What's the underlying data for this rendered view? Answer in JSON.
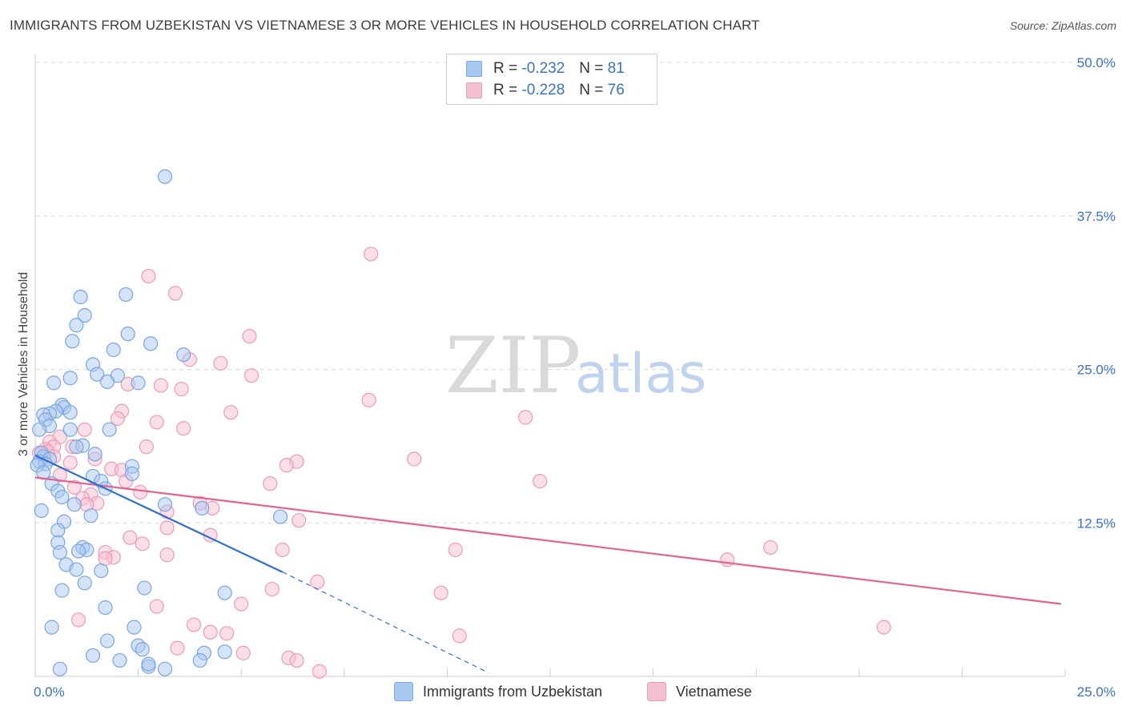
{
  "title": "IMMIGRANTS FROM UZBEKISTAN VS VIETNAMESE 3 OR MORE VEHICLES IN HOUSEHOLD CORRELATION CHART",
  "source": "Source: ZipAtlas.com",
  "watermark": {
    "zip": "ZIP",
    "atlas": "atlas"
  },
  "legend": {
    "rows": [
      {
        "r_label": "R = ",
        "r_value": "-0.232",
        "n_label": "N = ",
        "n_value": "81"
      },
      {
        "r_label": "R = ",
        "r_value": "-0.228",
        "n_label": "N = ",
        "n_value": "76"
      }
    ]
  },
  "bottom_legend": [
    "Immigrants from Uzbekistan",
    "Vietnamese"
  ],
  "colors": {
    "blue_fill": "#a9c8ef",
    "blue_stroke": "#7aa6e0",
    "blue_line": "#2e6fd1",
    "pink_fill": "#f5bfd2",
    "pink_stroke": "#ee9ab8",
    "pink_line": "#e4628f",
    "grid": "#dcdcdc",
    "tick": "#3a72c4"
  },
  "chart_data": {
    "type": "scatter",
    "xlabel": "",
    "ylabel": "3 or more Vehicles in Household",
    "xlim": [
      0,
      25
    ],
    "ylim": [
      0,
      50
    ],
    "x_tick_labels": [
      "0.0%",
      "25.0%"
    ],
    "y_ticks": [
      12.5,
      25.0,
      37.5,
      50.0
    ],
    "y_tick_labels": [
      "12.5%",
      "25.0%",
      "37.5%",
      "50.0%"
    ],
    "series": [
      {
        "name": "Immigrants from Uzbekistan",
        "R": -0.232,
        "N": 81,
        "trend": {
          "x0": 0.0,
          "y0": 18.0,
          "x1": 6.0,
          "y1": 8.5,
          "dash_x1": 11.0,
          "dash_y1": 0.3
        },
        "points": [
          [
            3.15,
            40.7
          ],
          [
            1.1,
            30.9
          ],
          [
            2.2,
            31.1
          ],
          [
            1.2,
            29.4
          ],
          [
            1.0,
            28.6
          ],
          [
            2.25,
            27.9
          ],
          [
            2.8,
            27.1
          ],
          [
            0.9,
            27.3
          ],
          [
            1.9,
            26.6
          ],
          [
            3.6,
            26.2
          ],
          [
            1.4,
            25.4
          ],
          [
            1.5,
            24.6
          ],
          [
            2.0,
            24.5
          ],
          [
            0.85,
            24.3
          ],
          [
            1.75,
            24.0
          ],
          [
            2.5,
            23.9
          ],
          [
            0.45,
            23.9
          ],
          [
            0.65,
            22.1
          ],
          [
            0.7,
            21.9
          ],
          [
            0.5,
            21.6
          ],
          [
            0.35,
            21.4
          ],
          [
            0.85,
            21.5
          ],
          [
            0.2,
            21.3
          ],
          [
            0.25,
            20.9
          ],
          [
            0.35,
            20.4
          ],
          [
            0.1,
            20.1
          ],
          [
            1.8,
            20.1
          ],
          [
            0.85,
            20.1
          ],
          [
            1.15,
            18.8
          ],
          [
            1.0,
            18.7
          ],
          [
            0.15,
            18.2
          ],
          [
            1.45,
            18.1
          ],
          [
            0.2,
            17.9
          ],
          [
            0.35,
            17.7
          ],
          [
            0.1,
            17.5
          ],
          [
            0.25,
            17.3
          ],
          [
            0.05,
            17.2
          ],
          [
            2.35,
            17.1
          ],
          [
            0.2,
            16.6
          ],
          [
            1.4,
            16.3
          ],
          [
            2.35,
            16.5
          ],
          [
            1.6,
            15.9
          ],
          [
            0.4,
            15.7
          ],
          [
            1.7,
            15.3
          ],
          [
            0.55,
            15.1
          ],
          [
            0.65,
            14.6
          ],
          [
            0.95,
            14.0
          ],
          [
            3.15,
            14.0
          ],
          [
            0.15,
            13.5
          ],
          [
            4.05,
            13.7
          ],
          [
            1.35,
            13.1
          ],
          [
            5.95,
            13.0
          ],
          [
            0.7,
            12.6
          ],
          [
            0.55,
            11.9
          ],
          [
            0.55,
            10.9
          ],
          [
            1.15,
            10.5
          ],
          [
            1.25,
            10.3
          ],
          [
            1.05,
            10.2
          ],
          [
            0.6,
            10.1
          ],
          [
            0.75,
            9.1
          ],
          [
            1.0,
            8.7
          ],
          [
            1.6,
            8.6
          ],
          [
            1.2,
            7.6
          ],
          [
            0.65,
            7.0
          ],
          [
            2.65,
            7.2
          ],
          [
            4.6,
            6.8
          ],
          [
            1.7,
            5.6
          ],
          [
            2.4,
            4.0
          ],
          [
            0.4,
            4.0
          ],
          [
            1.75,
            2.9
          ],
          [
            2.5,
            2.5
          ],
          [
            1.4,
            1.7
          ],
          [
            2.05,
            1.3
          ],
          [
            2.6,
            2.2
          ],
          [
            4.1,
            1.9
          ],
          [
            4.6,
            2.0
          ],
          [
            4.0,
            1.3
          ],
          [
            2.75,
            0.8
          ],
          [
            3.15,
            0.6
          ],
          [
            2.75,
            1.0
          ],
          [
            0.6,
            0.6
          ]
        ]
      },
      {
        "name": "Vietnamese",
        "R": -0.228,
        "N": 76,
        "trend": {
          "x0": 0.0,
          "y0": 16.2,
          "x1": 24.9,
          "y1": 5.9
        },
        "points": [
          [
            8.15,
            34.4
          ],
          [
            2.75,
            32.6
          ],
          [
            3.4,
            31.2
          ],
          [
            5.2,
            27.7
          ],
          [
            3.75,
            25.8
          ],
          [
            4.5,
            25.5
          ],
          [
            5.25,
            24.5
          ],
          [
            2.25,
            23.8
          ],
          [
            3.05,
            23.7
          ],
          [
            3.55,
            23.4
          ],
          [
            8.1,
            22.5
          ],
          [
            2.1,
            21.6
          ],
          [
            4.75,
            21.5
          ],
          [
            11.9,
            21.1
          ],
          [
            2.0,
            21.0
          ],
          [
            2.95,
            20.7
          ],
          [
            3.6,
            20.2
          ],
          [
            1.2,
            20.1
          ],
          [
            0.6,
            19.5
          ],
          [
            0.35,
            19.1
          ],
          [
            0.25,
            18.5
          ],
          [
            0.45,
            18.7
          ],
          [
            0.9,
            18.7
          ],
          [
            2.7,
            18.7
          ],
          [
            0.3,
            18.3
          ],
          [
            0.1,
            18.2
          ],
          [
            0.45,
            17.9
          ],
          [
            1.45,
            17.7
          ],
          [
            9.2,
            17.7
          ],
          [
            0.85,
            17.4
          ],
          [
            6.35,
            17.5
          ],
          [
            6.1,
            17.2
          ],
          [
            1.85,
            16.9
          ],
          [
            2.1,
            16.8
          ],
          [
            0.6,
            16.4
          ],
          [
            2.2,
            15.9
          ],
          [
            12.25,
            15.9
          ],
          [
            5.7,
            15.7
          ],
          [
            0.95,
            15.4
          ],
          [
            2.55,
            15.0
          ],
          [
            1.35,
            14.8
          ],
          [
            1.15,
            14.5
          ],
          [
            1.5,
            14.1
          ],
          [
            4.0,
            14.1
          ],
          [
            1.25,
            14.0
          ],
          [
            4.3,
            13.7
          ],
          [
            3.2,
            13.4
          ],
          [
            6.4,
            12.7
          ],
          [
            3.2,
            12.1
          ],
          [
            4.25,
            11.5
          ],
          [
            2.3,
            11.3
          ],
          [
            2.6,
            10.8
          ],
          [
            17.85,
            10.5
          ],
          [
            10.2,
            10.3
          ],
          [
            6.0,
            10.3
          ],
          [
            3.2,
            9.9
          ],
          [
            16.8,
            9.5
          ],
          [
            1.7,
            10.1
          ],
          [
            1.9,
            9.7
          ],
          [
            1.7,
            9.6
          ],
          [
            6.85,
            7.7
          ],
          [
            5.75,
            7.1
          ],
          [
            9.85,
            6.8
          ],
          [
            5.0,
            5.9
          ],
          [
            2.95,
            5.7
          ],
          [
            1.05,
            4.6
          ],
          [
            3.85,
            4.2
          ],
          [
            20.6,
            4.0
          ],
          [
            4.25,
            3.6
          ],
          [
            4.65,
            3.5
          ],
          [
            10.3,
            3.3
          ],
          [
            3.45,
            2.3
          ],
          [
            5.05,
            1.9
          ],
          [
            6.15,
            1.5
          ],
          [
            6.35,
            1.3
          ],
          [
            6.9,
            0.4
          ]
        ]
      }
    ]
  }
}
